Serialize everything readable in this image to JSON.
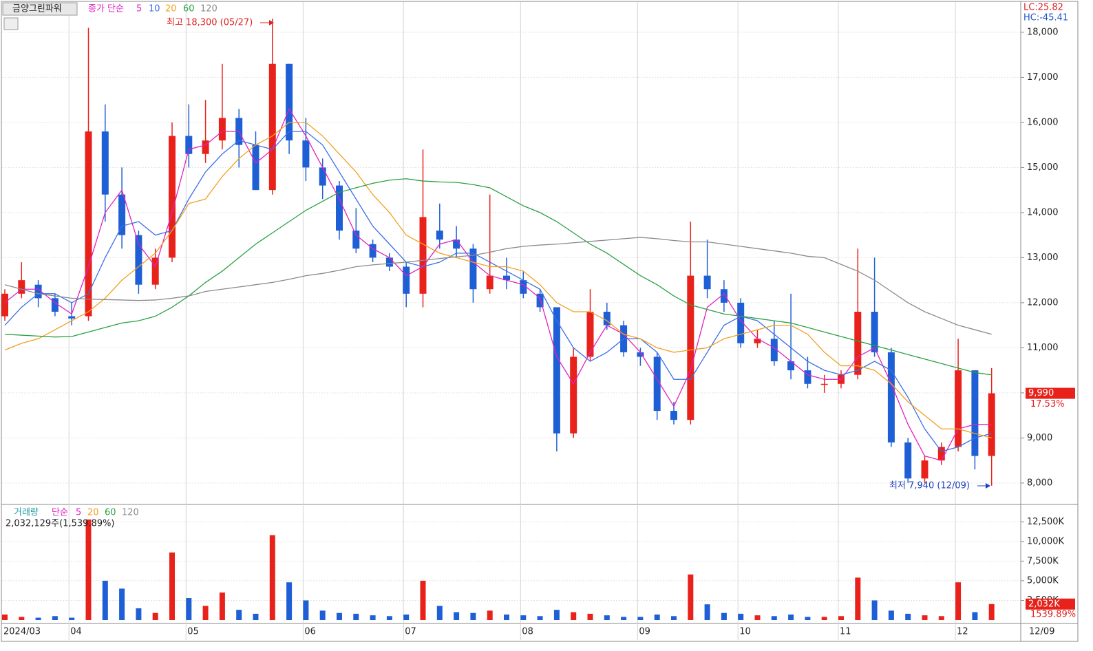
{
  "chart_data": [
    {
      "type": "candlestick",
      "title": "금양그린파워",
      "legend_label": "종가 단순",
      "indicators": [
        {
          "text": "LC:25.82",
          "color": "#e02020"
        },
        {
          "text": "HC:-45.41",
          "color": "#2050d0"
        }
      ],
      "categories": [
        "2024/03",
        null,
        null,
        null,
        "04",
        null,
        null,
        null,
        null,
        null,
        null,
        "05",
        null,
        null,
        null,
        null,
        null,
        null,
        "06",
        null,
        null,
        null,
        null,
        null,
        "07",
        null,
        null,
        null,
        null,
        null,
        null,
        "08",
        null,
        null,
        null,
        null,
        null,
        null,
        "09",
        null,
        null,
        null,
        null,
        null,
        "10",
        null,
        null,
        null,
        null,
        null,
        "11",
        null,
        null,
        null,
        null,
        null,
        null,
        "12",
        null,
        null
      ],
      "open": [
        11700,
        12200,
        12400,
        12100,
        11700,
        11700,
        15800,
        14400,
        13500,
        12400,
        13000,
        15700,
        15300,
        15600,
        16100,
        15500,
        14500,
        17300,
        15600,
        15000,
        14600,
        13600,
        13300,
        13000,
        12800,
        12200,
        13600,
        13400,
        13200,
        12300,
        12600,
        12500,
        12200,
        11900,
        9100,
        10800,
        11800,
        11500,
        10900,
        10800,
        9600,
        9400,
        12600,
        12300,
        12000,
        11100,
        11200,
        10700,
        10500,
        10200,
        10200,
        10400,
        11800,
        10900,
        8900,
        8100,
        8500,
        8800,
        10500,
        8600
      ],
      "high": [
        12300,
        12900,
        12500,
        12200,
        12000,
        18100,
        16400,
        15000,
        13600,
        13200,
        16000,
        16400,
        16500,
        17300,
        16300,
        15800,
        18300,
        17300,
        16100,
        15200,
        14700,
        14100,
        13400,
        13100,
        12900,
        15400,
        14200,
        13700,
        13300,
        14400,
        13000,
        12700,
        12300,
        11900,
        11000,
        12300,
        12000,
        11600,
        11000,
        10900,
        9800,
        13800,
        13400,
        12500,
        12100,
        11400,
        11600,
        12200,
        10800,
        10400,
        10500,
        13200,
        13000,
        11000,
        9000,
        8600,
        8900,
        11200,
        10500,
        10550
      ],
      "low": [
        11600,
        12100,
        11900,
        11700,
        11500,
        11600,
        13800,
        13200,
        12200,
        12300,
        12900,
        15000,
        15100,
        15400,
        15000,
        14500,
        14400,
        15300,
        14700,
        14300,
        13400,
        13100,
        12900,
        12700,
        11900,
        11900,
        13200,
        13000,
        12000,
        12200,
        12300,
        12100,
        11800,
        8700,
        9000,
        10700,
        11400,
        10800,
        10600,
        9400,
        9300,
        9300,
        12100,
        11800,
        11000,
        11000,
        10600,
        10300,
        10100,
        10000,
        10100,
        10300,
        10800,
        8800,
        8000,
        8000,
        8400,
        8700,
        8300,
        7940
      ],
      "close": [
        12200,
        12500,
        12100,
        11800,
        11650,
        15800,
        14400,
        13500,
        12400,
        13000,
        15700,
        15300,
        15600,
        16100,
        15500,
        14500,
        17300,
        15600,
        15000,
        14600,
        13600,
        13200,
        13000,
        12800,
        12200,
        13900,
        13400,
        13200,
        12300,
        12600,
        12500,
        12200,
        11900,
        9100,
        10800,
        11800,
        11500,
        10900,
        10800,
        9600,
        9400,
        12600,
        12300,
        12000,
        11100,
        11200,
        10700,
        10500,
        10200,
        10200,
        10400,
        11800,
        10900,
        8900,
        8100,
        8500,
        8800,
        10500,
        8600,
        9990
      ],
      "up_color": "#e8221b",
      "down_color": "#1f5fd6",
      "series": [
        {
          "name": "5",
          "color": "#e020c0",
          "values": [
            12000,
            12300,
            12300,
            12000,
            11750,
            12800,
            14000,
            14500,
            13300,
            12800,
            14000,
            15400,
            15500,
            15800,
            15800,
            15100,
            15400,
            16300,
            15700,
            15000,
            14300,
            13500,
            13200,
            13000,
            12600,
            12800,
            13300,
            13400,
            12900,
            12600,
            12500,
            12400,
            12100,
            10800,
            10200,
            10900,
            11500,
            11300,
            10900,
            10300,
            9700,
            10500,
            11900,
            12200,
            11600,
            11200,
            11000,
            10700,
            10400,
            10300,
            10300,
            10800,
            11000,
            10200,
            9300,
            8600,
            8500,
            9200,
            9300,
            9300
          ]
        },
        {
          "name": "10",
          "color": "#3a6ee8",
          "values": [
            11500,
            11900,
            12200,
            12200,
            12000,
            12200,
            13000,
            13700,
            13800,
            13500,
            13600,
            14300,
            14900,
            15300,
            15600,
            15500,
            15400,
            15800,
            15800,
            15500,
            14900,
            14300,
            13700,
            13300,
            12900,
            12800,
            12900,
            13100,
            13100,
            12900,
            12700,
            12500,
            12300,
            11600,
            11000,
            10700,
            10900,
            11200,
            11200,
            10900,
            10300,
            10300,
            10900,
            11500,
            11700,
            11600,
            11300,
            11000,
            10700,
            10500,
            10400,
            10500,
            10700,
            10500,
            9900,
            9200,
            8700,
            8800,
            9000,
            9100
          ]
        },
        {
          "name": "20",
          "color": "#f0a020",
          "values": [
            10950,
            11100,
            11200,
            11400,
            11600,
            11800,
            12100,
            12500,
            12800,
            13100,
            13600,
            14200,
            14300,
            14800,
            15200,
            15500,
            15700,
            16000,
            16000,
            15700,
            15300,
            14900,
            14400,
            14000,
            13500,
            13300,
            13100,
            13000,
            12900,
            12800,
            12800,
            12700,
            12400,
            12000,
            11800,
            11800,
            11600,
            11300,
            11200,
            11000,
            10900,
            10950,
            11000,
            11200,
            11300,
            11400,
            11500,
            11500,
            11300,
            10900,
            10600,
            10600,
            10500,
            10200,
            9800,
            9500,
            9200,
            9200,
            9100,
            9000
          ]
        },
        {
          "name": "60",
          "color": "#2aa040",
          "values": [
            11300,
            11280,
            11260,
            11240,
            11250,
            11350,
            11450,
            11550,
            11600,
            11700,
            11900,
            12150,
            12450,
            12700,
            13000,
            13300,
            13550,
            13800,
            14050,
            14250,
            14450,
            14550,
            14650,
            14720,
            14750,
            14700,
            14680,
            14670,
            14620,
            14550,
            14350,
            14150,
            14000,
            13800,
            13550,
            13300,
            13100,
            12850,
            12600,
            12400,
            12150,
            11950,
            11850,
            11750,
            11700,
            11650,
            11600,
            11550,
            11450,
            11350,
            11250,
            11150,
            11050,
            10950,
            10850,
            10750,
            10650,
            10550,
            10450,
            10400
          ]
        },
        {
          "name": "120",
          "color": "#8a8a8a",
          "values": [
            12400,
            12300,
            12200,
            12150,
            12100,
            12080,
            12070,
            12060,
            12050,
            12060,
            12100,
            12150,
            12250,
            12300,
            12350,
            12400,
            12450,
            12520,
            12600,
            12650,
            12720,
            12800,
            12840,
            12870,
            12900,
            12940,
            12980,
            13020,
            13050,
            13120,
            13200,
            13250,
            13280,
            13300,
            13330,
            13360,
            13390,
            13420,
            13450,
            13420,
            13380,
            13350,
            13350,
            13300,
            13250,
            13200,
            13150,
            13100,
            13030,
            13000,
            12850,
            12700,
            12500,
            12250,
            12000,
            11800,
            11650,
            11500,
            11400,
            11300
          ]
        }
      ],
      "ylim": [
        7540,
        18640
      ],
      "yticks": [
        {
          "value": 8000,
          "label": "8,000"
        },
        {
          "value": 9000,
          "label": "9,000"
        },
        {
          "value": 10000,
          "label": "10,000"
        },
        {
          "value": 11000,
          "label": "11,000"
        },
        {
          "value": 12000,
          "label": "12,000"
        },
        {
          "value": 13000,
          "label": "13,000"
        },
        {
          "value": 14000,
          "label": "14,000"
        },
        {
          "value": 15000,
          "label": "15,000"
        },
        {
          "value": 16000,
          "label": "16,000"
        },
        {
          "value": 17000,
          "label": "17,000"
        },
        {
          "value": 18000,
          "label": "18,000"
        }
      ],
      "grid": true,
      "high_annotation": "최고 18,300 (05/27)",
      "low_annotation": "최저 7,940 (12/09)",
      "last_label": "9,990",
      "last_change": "17.53%",
      "last_date": "12/09"
    },
    {
      "type": "bar",
      "title": "거래량",
      "legend_label": "단순",
      "legend": [
        {
          "name": "5",
          "color": "#e020c0"
        },
        {
          "name": "20",
          "color": "#f0a020"
        },
        {
          "name": "60",
          "color": "#2aa040"
        },
        {
          "name": "120",
          "color": "#8a8a8a"
        }
      ],
      "summary": "2,032,129주(1,539.89%)",
      "values": [
        700,
        400,
        300,
        500,
        300,
        12800,
        5000,
        4000,
        1500,
        900,
        8600,
        2800,
        1800,
        3500,
        1300,
        800,
        10800,
        4800,
        2500,
        1200,
        900,
        800,
        600,
        500,
        700,
        5000,
        1800,
        1000,
        900,
        1200,
        700,
        600,
        500,
        1300,
        1000,
        800,
        600,
        400,
        400,
        700,
        500,
        5800,
        2000,
        900,
        800,
        600,
        500,
        700,
        400,
        400,
        500,
        5400,
        2500,
        1200,
        800,
        600,
        500,
        4800,
        1000,
        2032
      ],
      "ylim": [
        0,
        14100
      ],
      "yticks": [
        {
          "value": 2500,
          "label": "2,500K"
        },
        {
          "value": 5000,
          "label": "5,000K"
        },
        {
          "value": 7500,
          "label": "7,500K"
        },
        {
          "value": 10000,
          "label": "10,000K"
        },
        {
          "value": 12500,
          "label": "12,500K"
        }
      ],
      "last_label": "2,032K",
      "last_change": "1539.89%"
    }
  ]
}
